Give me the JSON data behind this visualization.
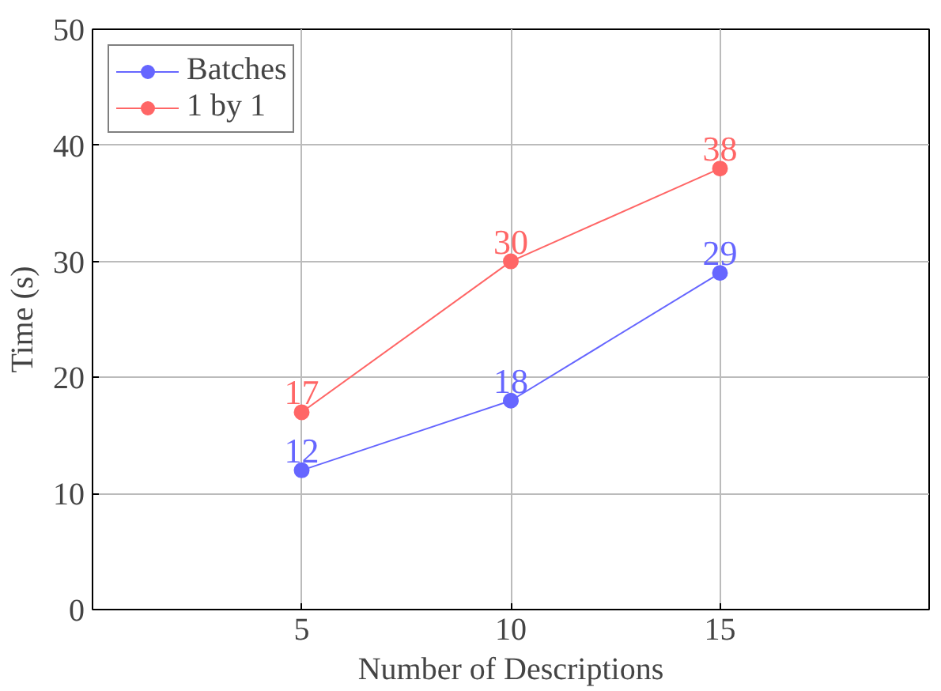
{
  "chart_data": {
    "type": "line",
    "xlabel": "Number of Descriptions",
    "ylabel": "Time (s)",
    "x": [
      5,
      10,
      15
    ],
    "series": [
      {
        "name": "Batches",
        "color": "#6666ff",
        "values": [
          12,
          18,
          29
        ]
      },
      {
        "name": "1 by 1",
        "color": "#ff6666",
        "values": [
          17,
          30,
          38
        ]
      }
    ],
    "xlim": [
      0,
      20
    ],
    "ylim": [
      0,
      50
    ],
    "xticks": [
      5,
      10,
      15
    ],
    "yticks": [
      0,
      10,
      20,
      30,
      40,
      50
    ],
    "grid": true,
    "legend": "top left",
    "marker": "circle",
    "line_style": "solid",
    "data_labels": true
  }
}
